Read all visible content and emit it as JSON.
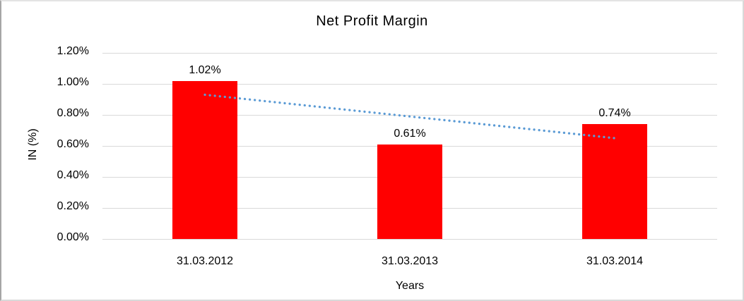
{
  "chart_data": {
    "type": "bar",
    "title": "Net Profit Margin",
    "categories": [
      "31.03.2012",
      "31.03.2013",
      "31.03.2014"
    ],
    "values": [
      1.02,
      0.61,
      0.74
    ],
    "value_labels": [
      "1.02%",
      "0.61%",
      "0.74%"
    ],
    "xlabel": "Years",
    "ylabel": "IN (%)",
    "y_ticks": [
      "1.20%",
      "1.00%",
      "0.80%",
      "0.60%",
      "0.40%",
      "0.20%",
      "0.00%"
    ],
    "ylim": [
      0,
      1.2
    ],
    "grid": "horizontal",
    "legend": "none",
    "bar_color": "#ff0000",
    "gridline_color": "#d9d9d9",
    "trendline": {
      "type": "linear",
      "style": "dotted",
      "color": "#5b9bd5",
      "start_value": 0.93,
      "end_value": 0.65
    }
  }
}
